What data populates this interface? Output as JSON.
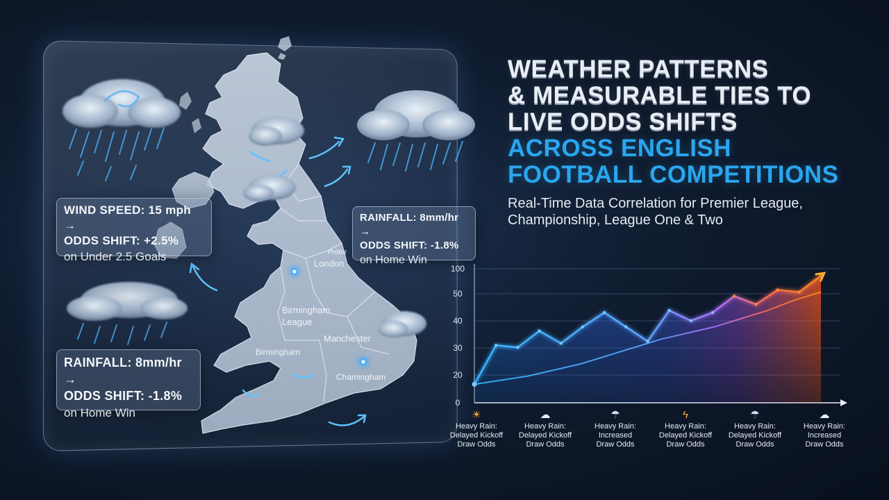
{
  "title": {
    "line1": "WEATHER PATTERNS",
    "line2": "& MEASURABLE TIES TO",
    "line3": "LIVE ODDS SHIFTS",
    "line4": "ACROSS ENGLISH",
    "line5": "FOOTBALL COMPETITIONS"
  },
  "subtitle": "Real-Time Data Correlation for Premier League, Championship, League One & Two",
  "colors": {
    "accent_blue": "#2aa6ee",
    "line_blue": "#3fb2f5",
    "line_orange": "#ff7a2a",
    "background": "#0f1b2e"
  },
  "map": {
    "labels": {
      "proter": "Proter",
      "london": "London",
      "birmingham_league": "Birmingham\nLeague",
      "birmingham": "Birmingham",
      "manchester": "Manchester",
      "chamingham": "Chamingham"
    }
  },
  "cards": {
    "wind": {
      "line1": "WIND SPEED: 15 mph →",
      "line2": "ODDS SHIFT: +2.5%",
      "line3": "on Under 2.5 Goals"
    },
    "rain_right": {
      "line1": "RAINFALL: 8mm/hr →",
      "line2": "ODDS SHIFT: -1.8%",
      "line3": "on Home Win"
    },
    "rain_left": {
      "line1": "RAINFALL: 8mm/hr →",
      "line2": "ODDS SHIFT: -1.8%",
      "line3": "on Home Win"
    }
  },
  "chart_data": {
    "type": "area",
    "ytick_labels": [
      "0",
      "20",
      "30",
      "40",
      "50",
      "100"
    ],
    "series": [
      {
        "values": [
          9,
          28,
          27,
          35,
          29,
          37,
          44,
          37,
          30,
          45,
          40,
          44,
          52,
          48,
          55,
          54,
          62
        ]
      },
      {
        "values": [
          9,
          11,
          13,
          16,
          19,
          23,
          27,
          31,
          34,
          37,
          41,
          45,
          50,
          54
        ]
      }
    ],
    "conditions": [
      {
        "icon": "sun-icon",
        "glyph": "☀",
        "text": "Heavy Rain:\nDelayed Kickoff\nDraw Odds"
      },
      {
        "icon": "cloud-icon",
        "glyph": "☁",
        "text": "Heavy Rain:\nDelayed Kickoff\nDraw Odds"
      },
      {
        "icon": "rain-cloud-icon",
        "glyph": "☂",
        "text": "Heavy Rain:\nIncreased\nDraw Odds"
      },
      {
        "icon": "lightning-icon",
        "glyph": "ϟ",
        "text": "Heavy Rain:\nDelayed Kickoff\nDraw Odds"
      },
      {
        "icon": "rain-cloud-icon",
        "glyph": "☂",
        "text": "Heavy Rain:\nDelayed Kickoff\nDraw Odds"
      },
      {
        "icon": "cloud-icon",
        "glyph": "☁",
        "text": "Heavy Rain:\nIncreased\nDraw Odds"
      }
    ]
  }
}
